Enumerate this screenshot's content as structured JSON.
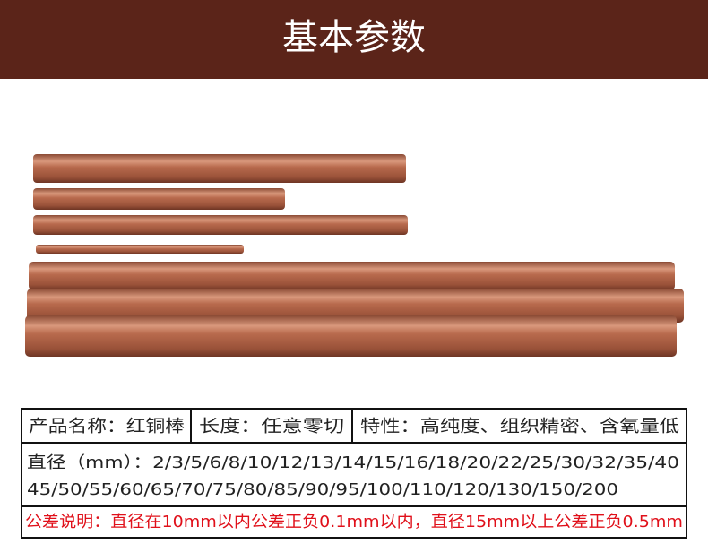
{
  "header": {
    "title": "基本参数"
  },
  "table": {
    "spec_row": [
      "产品名称：红铜棒",
      "长度：任意零切",
      "特性：高纯度、组织精密、含氧量低"
    ],
    "diameter_lines": [
      "直径（mm）：2/3/5/6/8/10/12/13/14/15/16/18/20/22/25/30/32/35/40",
      "45/50/55/60/65/70/75/80/85/90/95/100/110/120/130/150/200"
    ],
    "note": "公差说明：直径在10mm以内公差正负0.1mm以内，直径15mm以上公差正负0.5mm"
  }
}
